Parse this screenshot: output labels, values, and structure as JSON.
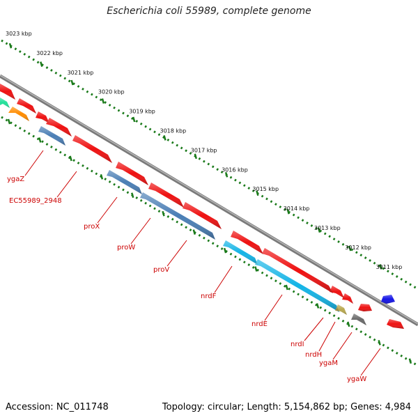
{
  "title": "Escherichia coli 55989, complete genome",
  "footer": {
    "accession": "Accession: NC_011748",
    "topology": "Topology: circular; Length: 5,154,862 bp; Genes: 4,984"
  },
  "colors": {
    "backbone": "#7a7a7a",
    "ruler": "#1a7a1a",
    "cds": "#ee1111",
    "cds_steel": "#4a7eb5",
    "cds_cyan": "#14b4e6",
    "cds_orange": "#ff8c00",
    "cds_teal": "#22e09a",
    "cds_olive": "#b8a850",
    "cds_gray": "#6a6a6a",
    "cds_blue": "#1414e6",
    "label": "#cc0000"
  },
  "ruler_labels": [
    "3023 kbp",
    "3022 kbp",
    "3021 kbp",
    "3020 kbp",
    "3019 kbp",
    "3018 kbp",
    "3017 kbp",
    "3016 kbp",
    "3015 kbp",
    "3014 kbp",
    "3013 kbp",
    "3012 kbp",
    "3011 kbp"
  ],
  "genes": [
    "ygaZ",
    "EC55989_2948",
    "proX",
    "proW",
    "proV",
    "nrdF",
    "nrdE",
    "nrdI",
    "nrdH",
    "ygaM",
    "ygaW"
  ]
}
